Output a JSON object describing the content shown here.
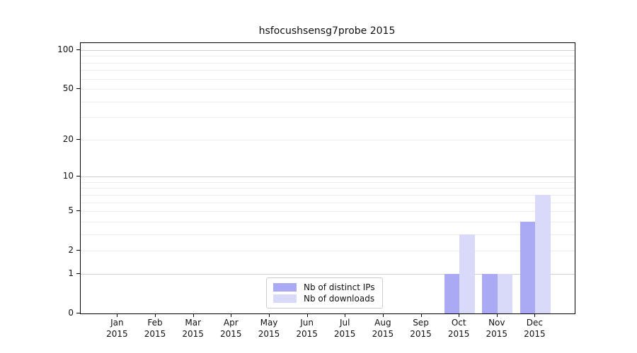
{
  "title": "hsfocushsensg7probe 2015",
  "legend": {
    "items": [
      {
        "label": "Nb of distinct IPs",
        "color": "#a9a9f4"
      },
      {
        "label": "Nb of downloads",
        "color": "#d9d9f9"
      }
    ]
  },
  "chart_data": {
    "type": "bar",
    "title": "hsfocushsensg7probe 2015",
    "categories": [
      "Jan 2015",
      "Feb 2015",
      "Mar 2015",
      "Apr 2015",
      "May 2015",
      "Jun 2015",
      "Jul 2015",
      "Aug 2015",
      "Sep 2015",
      "Oct 2015",
      "Nov 2015",
      "Dec 2015"
    ],
    "x_tick_month": [
      "Jan",
      "Feb",
      "Mar",
      "Apr",
      "May",
      "Jun",
      "Jul",
      "Aug",
      "Sep",
      "Oct",
      "Nov",
      "Dec"
    ],
    "x_tick_year": "2015",
    "series": [
      {
        "name": "Nb of distinct IPs",
        "color": "#a9a9f4",
        "values": [
          0,
          0,
          0,
          0,
          0,
          0,
          0,
          0,
          0,
          1,
          1,
          4
        ]
      },
      {
        "name": "Nb of downloads",
        "color": "#d9d9f9",
        "values": [
          0,
          0,
          0,
          0,
          0,
          0,
          0,
          0,
          0,
          3,
          1,
          7
        ]
      }
    ],
    "y_ticks": [
      0,
      1,
      2,
      5,
      10,
      20,
      50,
      100
    ],
    "y_scale": "log10(1+value)",
    "ylim": [
      0,
      113
    ],
    "grid_major": [
      1,
      10,
      100
    ],
    "grid_minor": [
      2,
      3,
      4,
      5,
      6,
      7,
      8,
      9,
      20,
      30,
      40,
      50,
      60,
      70,
      80,
      90
    ],
    "legend_position": "lower center",
    "grid": true,
    "colors": {
      "grid_major": "#cfcfcf",
      "grid_minor": "#ededed",
      "axis": "#000000",
      "text": "#111111",
      "background": "#ffffff"
    }
  }
}
